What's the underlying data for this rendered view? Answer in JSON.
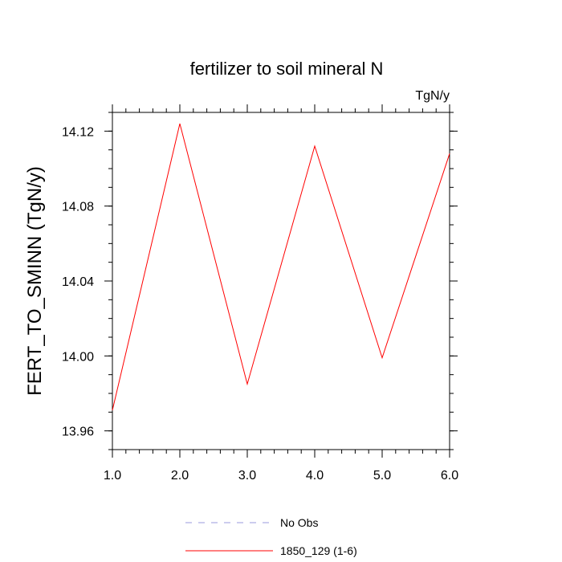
{
  "chart_data": {
    "type": "line",
    "title": "fertilizer to soil mineral N",
    "units": "TgN/y",
    "ylabel": "FERT_TO_SMINN  (TgN/y)",
    "xlabel": "",
    "xlim": [
      1.0,
      6.0
    ],
    "ylim": [
      13.95,
      14.13
    ],
    "x_ticks": [
      1.0,
      2.0,
      3.0,
      4.0,
      5.0,
      6.0
    ],
    "x_tick_labels": [
      "1.0",
      "2.0",
      "3.0",
      "4.0",
      "5.0",
      "6.0"
    ],
    "y_ticks": [
      13.96,
      14.0,
      14.04,
      14.08,
      14.12
    ],
    "y_tick_labels": [
      "13.96",
      "14.00",
      "14.04",
      "14.08",
      "14.12"
    ],
    "grid": false,
    "legend_placement": "bottom",
    "series": [
      {
        "name": "No Obs",
        "color": "#9999dd",
        "style": "dashed",
        "x": [],
        "values": []
      },
      {
        "name": "1850_129 (1-6)",
        "color": "#ff0000",
        "style": "solid",
        "x": [
          1.0,
          2.0,
          3.0,
          4.0,
          5.0,
          6.0
        ],
        "values": [
          13.971,
          14.124,
          13.985,
          14.112,
          13.999,
          14.108
        ]
      }
    ]
  }
}
